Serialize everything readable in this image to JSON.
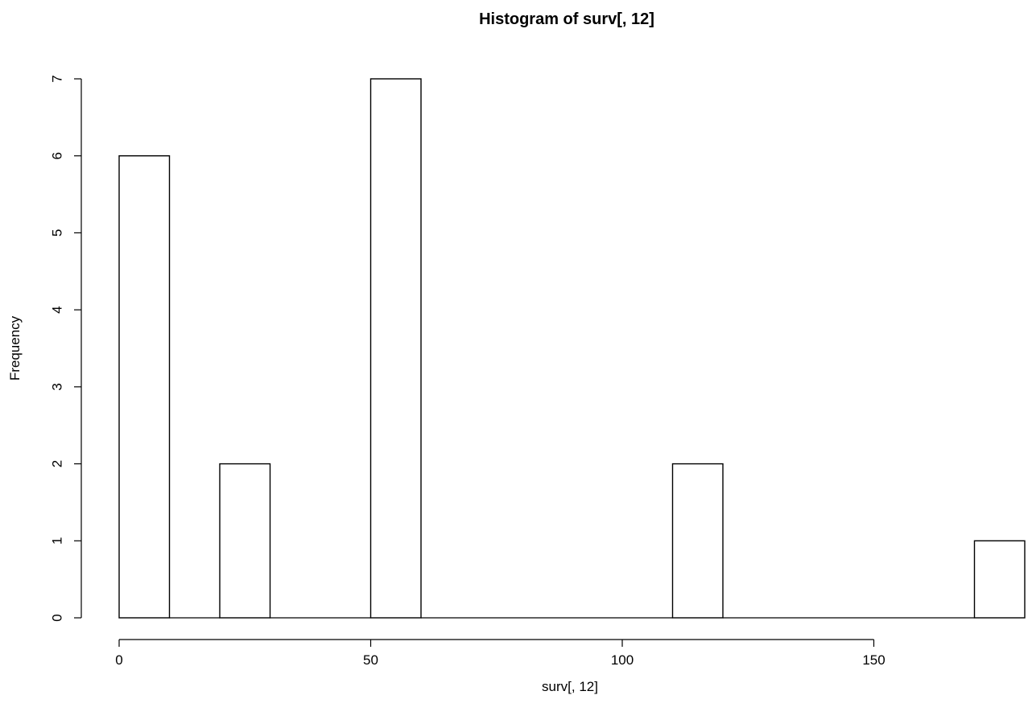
{
  "chart_data": {
    "type": "bar",
    "title": "Histogram of surv[, 12]",
    "xlabel": "surv[, 12]",
    "ylabel": "Frequency",
    "bin_width": 10,
    "bins": [
      {
        "start": 0,
        "end": 10,
        "count": 6
      },
      {
        "start": 10,
        "end": 20,
        "count": 0
      },
      {
        "start": 20,
        "end": 30,
        "count": 2
      },
      {
        "start": 30,
        "end": 40,
        "count": 0
      },
      {
        "start": 40,
        "end": 50,
        "count": 0
      },
      {
        "start": 50,
        "end": 60,
        "count": 7
      },
      {
        "start": 60,
        "end": 70,
        "count": 0
      },
      {
        "start": 70,
        "end": 80,
        "count": 0
      },
      {
        "start": 80,
        "end": 90,
        "count": 0
      },
      {
        "start": 90,
        "end": 100,
        "count": 0
      },
      {
        "start": 100,
        "end": 110,
        "count": 0
      },
      {
        "start": 110,
        "end": 120,
        "count": 2
      },
      {
        "start": 120,
        "end": 130,
        "count": 0
      },
      {
        "start": 130,
        "end": 140,
        "count": 0
      },
      {
        "start": 140,
        "end": 150,
        "count": 0
      },
      {
        "start": 150,
        "end": 160,
        "count": 0
      },
      {
        "start": 160,
        "end": 170,
        "count": 0
      },
      {
        "start": 170,
        "end": 180,
        "count": 1
      }
    ],
    "x_ticks": [
      0,
      50,
      100,
      150
    ],
    "y_ticks": [
      0,
      1,
      2,
      3,
      4,
      5,
      6,
      7
    ],
    "xlim": [
      0,
      180
    ],
    "ylim": [
      0,
      7
    ],
    "grid": false
  }
}
